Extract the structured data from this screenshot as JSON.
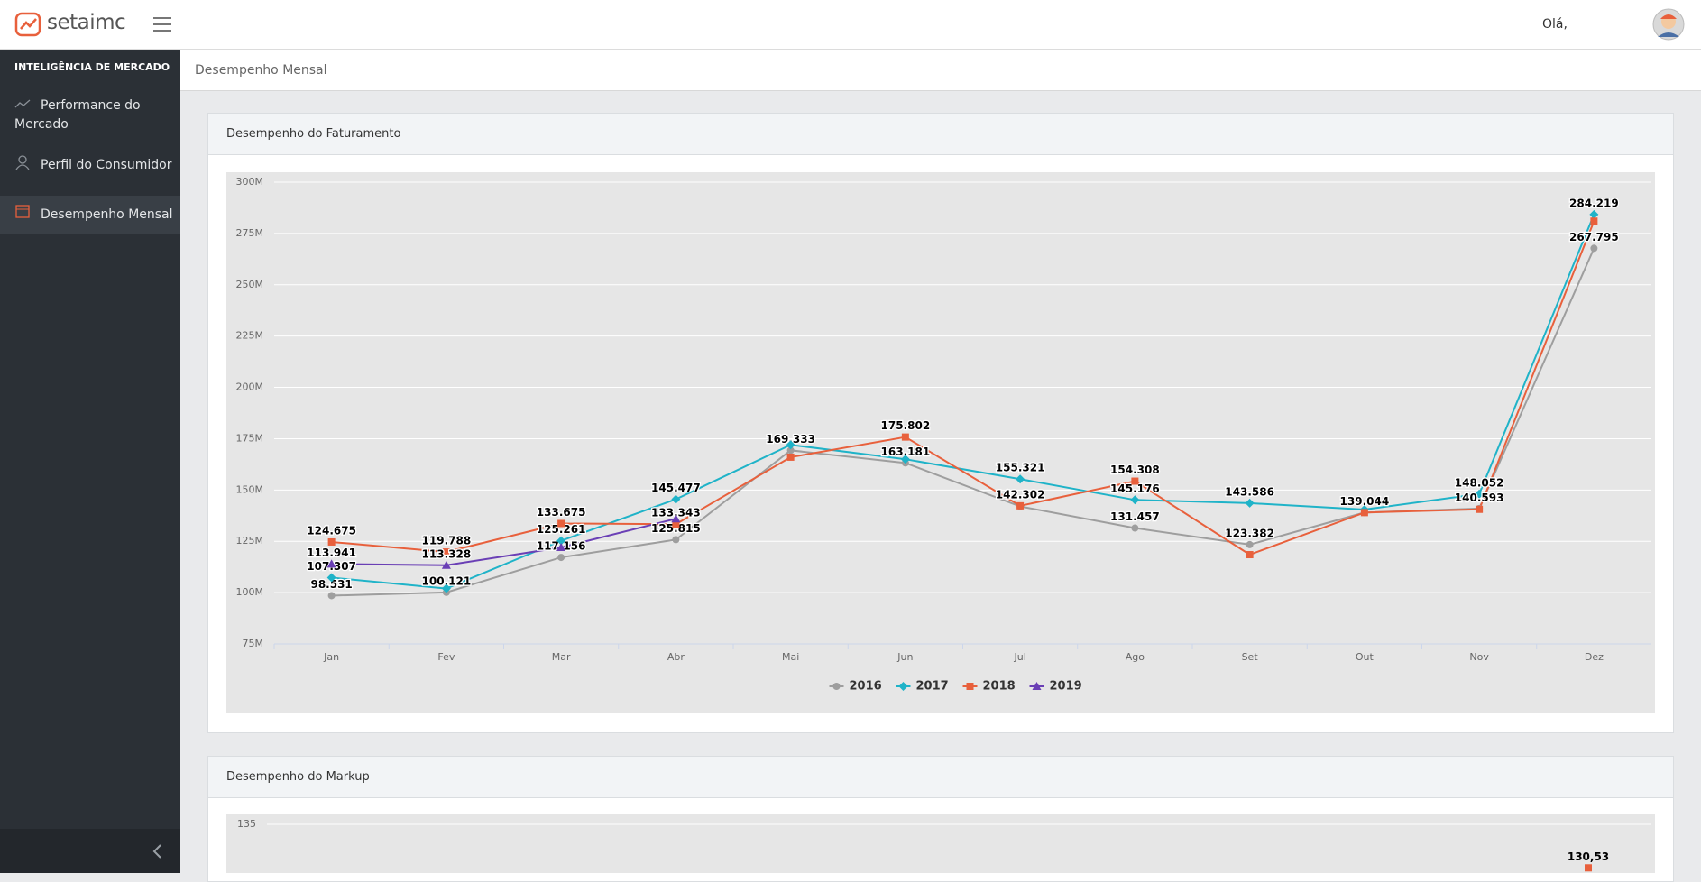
{
  "header": {
    "logo": "setaimc",
    "greeting": "Olá,"
  },
  "sidebar": {
    "section": "INTELIGÊNCIA DE MERCADO",
    "items": [
      "Performance do Mercado",
      "Perfil do Consumidor",
      "Desempenho Mensal"
    ]
  },
  "breadcrumb": "Desempenho Mensal",
  "chart_data": [
    {
      "type": "line",
      "title": "Desempenho do Faturamento",
      "categories": [
        "Jan",
        "Fev",
        "Mar",
        "Abr",
        "Mai",
        "Jun",
        "Jul",
        "Ago",
        "Set",
        "Out",
        "Nov",
        "Dez"
      ],
      "ylim": [
        75,
        300
      ],
      "yticks": [
        {
          "value": 75,
          "label": "75M"
        },
        {
          "value": 100,
          "label": "100M"
        },
        {
          "value": 125,
          "label": "125M"
        },
        {
          "value": 150,
          "label": "150M"
        },
        {
          "value": 175,
          "label": "175M"
        },
        {
          "value": 200,
          "label": "200M"
        },
        {
          "value": 225,
          "label": "225M"
        },
        {
          "value": 250,
          "label": "250M"
        },
        {
          "value": 275,
          "label": "275M"
        },
        {
          "value": 300,
          "label": "300M"
        }
      ],
      "grid": true,
      "legend": "bottom",
      "series": [
        {
          "name": "2016",
          "color": "#9e9e9e",
          "marker": "circle",
          "values": [
            98.531,
            100.121,
            117.156,
            125.815,
            169.333,
            163.181,
            142,
            131.457,
            123.382,
            139.044,
            141,
            267.795
          ],
          "value_labels": [
            "98.531",
            "100.121",
            "117.156",
            "125.815",
            "169.333",
            "163.181",
            null,
            "131.457",
            "123.382",
            "139.044",
            null,
            "267.795"
          ]
        },
        {
          "name": "2017",
          "color": "#1fb3c8",
          "marker": "diamond",
          "values": [
            107.307,
            102,
            125.261,
            145.477,
            172,
            165,
            155.321,
            145.176,
            143.586,
            140.5,
            148.052,
            284.219
          ],
          "value_labels": [
            "107.307",
            null,
            "125.261",
            "145.477",
            null,
            null,
            "155.321",
            "145.176",
            "143.586",
            null,
            "148.052",
            "284.219"
          ]
        },
        {
          "name": "2018",
          "color": "#e8603c",
          "marker": "square",
          "values": [
            124.675,
            119.788,
            133.675,
            133.343,
            166,
            175.802,
            142.302,
            154.308,
            118.5,
            139,
            140.593,
            281
          ],
          "value_labels": [
            "124.675",
            "119.788",
            "133.675",
            "133.343",
            null,
            "175.802",
            "142.302",
            "154.308",
            null,
            null,
            "140.593",
            null
          ]
        },
        {
          "name": "2019",
          "color": "#6a3fb5",
          "marker": "triangle",
          "values": [
            113.941,
            113.328,
            122,
            136,
            null,
            null,
            null,
            null,
            null,
            null,
            null,
            null
          ],
          "value_labels": [
            "113.941",
            "113.328",
            null,
            null,
            null,
            null,
            null,
            null,
            null,
            null,
            null,
            null
          ]
        }
      ]
    },
    {
      "type": "line",
      "title": "Desempenho do Markup",
      "ylim": [
        130,
        135
      ],
      "yticks": [
        135
      ],
      "grid": true,
      "color": "#e8603c",
      "values": [
        130.53
      ],
      "value_labels": [
        "130,53"
      ]
    }
  ]
}
